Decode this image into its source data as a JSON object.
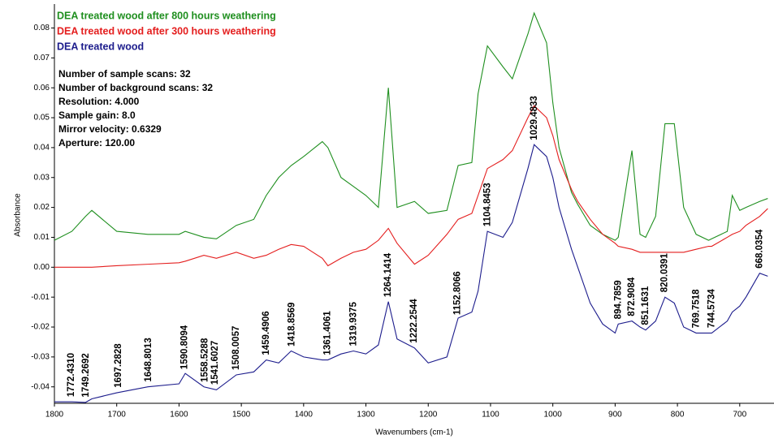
{
  "chart_data": {
    "type": "line",
    "x_label": "Wavenumbers (cm-1)",
    "y_label": "Absorbance",
    "xlim": [
      1800,
      645
    ],
    "ylim": [
      -0.0455,
      0.088
    ],
    "xticks": [
      1800,
      1700,
      1600,
      1500,
      1400,
      1300,
      1200,
      1100,
      1000,
      900,
      800,
      700
    ],
    "yticks": [
      0.08,
      0.07,
      0.06,
      0.05,
      0.04,
      0.03,
      0.02,
      0.01,
      {
        "value": 0,
        "label": "0.00"
      },
      -0.01,
      -0.02,
      -0.03,
      -0.04
    ],
    "info": [
      "Number of sample scans:  32",
      "Number of background scans:  32",
      "Resolution:  4.000",
      "Sample gain:  8.0",
      "Mirror velocity:  0.6329",
      "Aperture:  120.00"
    ],
    "x": [
      1800,
      1772,
      1750,
      1740,
      1700,
      1650,
      1600,
      1590,
      1560,
      1540,
      1508,
      1480,
      1460,
      1440,
      1420,
      1400,
      1370,
      1361,
      1340,
      1320,
      1300,
      1280,
      1264,
      1250,
      1222,
      1200,
      1170,
      1152,
      1130,
      1120,
      1105,
      1080,
      1065,
      1040,
      1030,
      1010,
      1000,
      990,
      970,
      960,
      940,
      920,
      900,
      895,
      873,
      860,
      851,
      835,
      820,
      805,
      790,
      770,
      750,
      745,
      720,
      712,
      700,
      690,
      668,
      655
    ],
    "series": [
      {
        "name": "DEA treated wood after 800 hours weathering",
        "color": "#1f8f1f",
        "values": [
          0.009,
          0.012,
          0.017,
          0.019,
          0.012,
          0.011,
          0.011,
          0.012,
          0.01,
          0.0095,
          0.014,
          0.016,
          0.024,
          0.03,
          0.034,
          0.037,
          0.042,
          0.04,
          0.03,
          0.027,
          0.024,
          0.02,
          0.06,
          0.02,
          0.022,
          0.018,
          0.019,
          0.034,
          0.035,
          0.058,
          0.074,
          0.067,
          0.063,
          0.078,
          0.085,
          0.075,
          0.055,
          0.04,
          0.025,
          0.021,
          0.014,
          0.011,
          0.009,
          0.01,
          0.039,
          0.011,
          0.01,
          0.017,
          0.048,
          0.048,
          0.02,
          0.011,
          0.009,
          0.0095,
          0.012,
          0.024,
          0.019,
          0.02,
          0.022,
          0.023
        ]
      },
      {
        "name": "DEA treated wood after 300 hours weathering",
        "color": "#e41e1e",
        "values": [
          0,
          0,
          0,
          0,
          0.0005,
          0.001,
          0.0015,
          0.002,
          0.004,
          0.003,
          0.005,
          0.003,
          0.004,
          0.006,
          0.0076,
          0.007,
          0.003,
          0.0005,
          0.003,
          0.005,
          0.006,
          0.009,
          0.013,
          0.008,
          0.001,
          0.004,
          0.011,
          0.016,
          0.018,
          0.024,
          0.033,
          0.036,
          0.039,
          0.05,
          0.054,
          0.05,
          0.044,
          0.036,
          0.026,
          0.022,
          0.016,
          0.011,
          0.008,
          0.007,
          0.006,
          0.005,
          0.005,
          0.005,
          0.005,
          0.005,
          0.005,
          0.006,
          0.007,
          0.007,
          0.01,
          0.011,
          0.012,
          0.014,
          0.017,
          0.0196
        ]
      },
      {
        "name": "DEA treated wood",
        "color": "#1c1c8c",
        "values": [
          -0.045,
          -0.045,
          -0.0452,
          -0.044,
          -0.042,
          -0.04,
          -0.039,
          -0.0355,
          -0.04,
          -0.041,
          -0.036,
          -0.035,
          -0.031,
          -0.032,
          -0.028,
          -0.03,
          -0.031,
          -0.031,
          -0.029,
          -0.028,
          -0.029,
          -0.026,
          -0.0115,
          -0.024,
          -0.027,
          -0.032,
          -0.03,
          -0.017,
          -0.015,
          -0.008,
          0.012,
          0.01,
          0.015,
          0.033,
          0.041,
          0.037,
          0.03,
          0.02,
          0.006,
          0,
          -0.012,
          -0.019,
          -0.022,
          -0.019,
          -0.018,
          -0.02,
          -0.021,
          -0.018,
          -0.01,
          -0.012,
          -0.02,
          -0.022,
          -0.022,
          -0.022,
          -0.018,
          -0.015,
          -0.013,
          -0.01,
          -0.002,
          -0.003
        ]
      }
    ],
    "annotations": [
      {
        "x": 1772.431,
        "label": "1772.4310"
      },
      {
        "x": 1749.2692,
        "label": "1749.2692"
      },
      {
        "x": 1697.2828,
        "label": "1697.2828"
      },
      {
        "x": 1648.8013,
        "label": "1648.8013"
      },
      {
        "x": 1590.8094,
        "label": "1590.8094"
      },
      {
        "x": 1558.5288,
        "label": "1558.5288"
      },
      {
        "x": 1541.6027,
        "label": "1541.6027"
      },
      {
        "x": 1508.0057,
        "label": "1508.0057"
      },
      {
        "x": 1459.4906,
        "label": "1459.4906"
      },
      {
        "x": 1418.8569,
        "label": "1418.8569"
      },
      {
        "x": 1361.4061,
        "label": "1361.4061"
      },
      {
        "x": 1319.9375,
        "label": "1319.9375"
      },
      {
        "x": 1264.1414,
        "label": "1264.1414"
      },
      {
        "x": 1222.2544,
        "label": "1222.2544"
      },
      {
        "x": 1152.8066,
        "label": "1152.8066"
      },
      {
        "x": 1104.8453,
        "label": "1104.8453"
      },
      {
        "x": 1029.4833,
        "label": "1029.4833"
      },
      {
        "x": 894.7859,
        "label": "894.7859"
      },
      {
        "x": 872.9084,
        "label": "872.9084"
      },
      {
        "x": 851.1631,
        "label": "851.1631"
      },
      {
        "x": 820.0391,
        "label": "820.0391"
      },
      {
        "x": 769.7518,
        "label": "769.7518"
      },
      {
        "x": 744.5734,
        "label": "744.5734"
      },
      {
        "x": 668.0354,
        "label": "668.0354"
      }
    ],
    "annotation_series": 2,
    "grid": false
  }
}
